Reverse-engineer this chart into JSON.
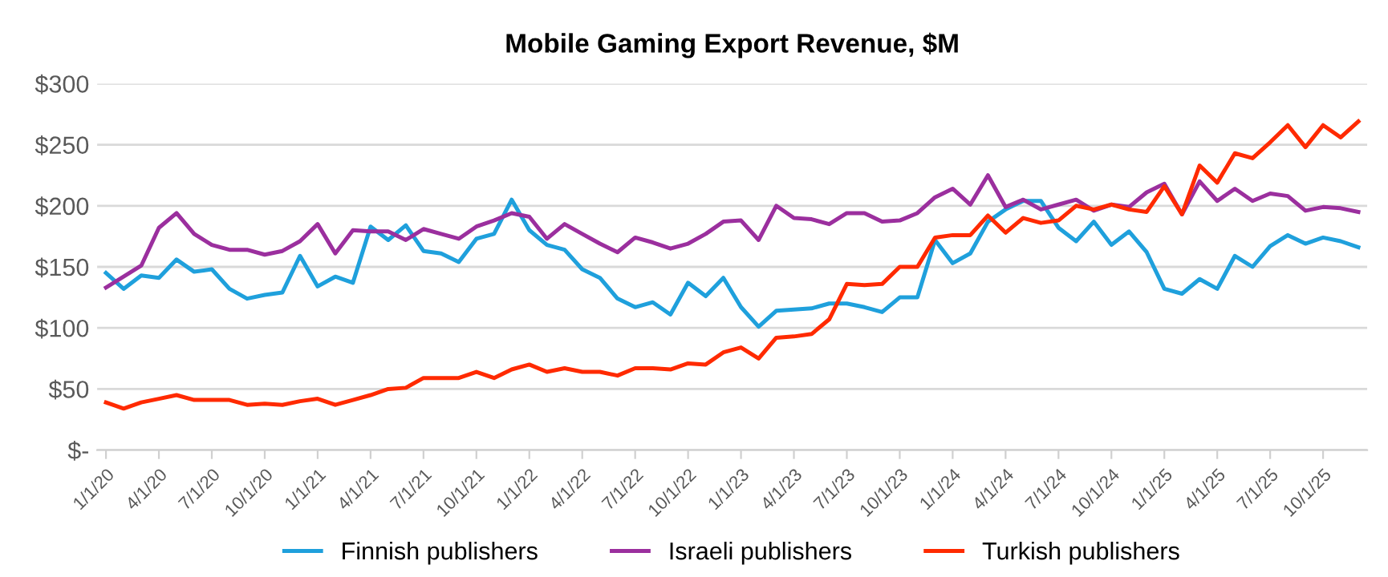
{
  "chart_data": {
    "type": "line",
    "title": "Mobile Gaming Export Revenue, $M",
    "categories": [
      "1/1/20",
      null,
      null,
      "4/1/20",
      null,
      null,
      "7/1/20",
      null,
      null,
      "10/1/20",
      null,
      null,
      "1/1/21",
      null,
      null,
      "4/1/21",
      null,
      null,
      "7/1/21",
      null,
      null,
      "10/1/21",
      null,
      null,
      "1/1/22",
      null,
      null,
      "4/1/22",
      null,
      null,
      "7/1/22",
      null,
      null,
      "10/1/22",
      null,
      null,
      "1/1/23",
      null,
      null,
      "4/1/23",
      null,
      null,
      "7/1/23",
      null,
      null,
      "10/1/23",
      null,
      null,
      "1/1/24",
      null,
      null,
      "4/1/24",
      null,
      null,
      "7/1/24",
      null,
      null,
      "10/1/24",
      null,
      null,
      "1/1/25",
      null,
      null,
      "4/1/25",
      null,
      null,
      "7/1/25",
      null,
      null,
      "10/1/25",
      null,
      null
    ],
    "series": [
      {
        "name": "Finnish publishers",
        "color": "#1fa0dc",
        "values": [
          145,
          132,
          143,
          141,
          156,
          146,
          148,
          132,
          124,
          127,
          129,
          159,
          134,
          142,
          137,
          183,
          172,
          184,
          163,
          161,
          154,
          173,
          177,
          205,
          180,
          168,
          164,
          148,
          141,
          124,
          117,
          121,
          111,
          137,
          126,
          141,
          117,
          101,
          114,
          115,
          116,
          120,
          120,
          117,
          113,
          125,
          125,
          172,
          153,
          161,
          187,
          197,
          204,
          204,
          182,
          171,
          187,
          168,
          179,
          162,
          132,
          128,
          140,
          132,
          159,
          150,
          167,
          176,
          169,
          174,
          171,
          166
        ]
      },
      {
        "name": "Israeli publishers",
        "color": "#9b2f9e",
        "values": [
          133,
          142,
          151,
          182,
          194,
          177,
          168,
          164,
          164,
          160,
          163,
          171,
          185,
          161,
          180,
          179,
          179,
          172,
          181,
          177,
          173,
          183,
          188,
          194,
          191,
          173,
          185,
          177,
          169,
          162,
          174,
          170,
          165,
          169,
          177,
          187,
          188,
          172,
          200,
          190,
          189,
          185,
          194,
          194,
          187,
          188,
          194,
          207,
          214,
          201,
          225,
          199,
          205,
          197,
          201,
          205,
          196,
          201,
          199,
          211,
          218,
          193,
          220,
          204,
          214,
          204,
          210,
          208,
          196,
          199,
          198,
          195
        ]
      },
      {
        "name": "Turkish publishers",
        "color": "#ff2a00",
        "values": [
          39,
          34,
          39,
          42,
          45,
          41,
          41,
          41,
          37,
          38,
          37,
          40,
          42,
          37,
          41,
          45,
          50,
          51,
          59,
          59,
          59,
          64,
          59,
          66,
          70,
          64,
          67,
          64,
          64,
          61,
          67,
          67,
          66,
          71,
          70,
          80,
          84,
          75,
          92,
          93,
          95,
          107,
          136,
          135,
          136,
          150,
          150,
          174,
          176,
          176,
          192,
          178,
          190,
          186,
          188,
          200,
          197,
          201,
          197,
          195,
          216,
          193,
          233,
          219,
          243,
          239,
          252,
          266,
          248,
          266,
          256,
          269
        ]
      }
    ],
    "ylim": [
      0,
      300
    ],
    "yticks": [
      {
        "value": 0,
        "label": "$-"
      },
      {
        "value": 50,
        "label": "$50"
      },
      {
        "value": 100,
        "label": "$100"
      },
      {
        "value": 150,
        "label": "$150"
      },
      {
        "value": 200,
        "label": "$200"
      },
      {
        "value": 250,
        "label": "$250"
      },
      {
        "value": 300,
        "label": "$300"
      }
    ],
    "grid": "y",
    "legend": "bottom",
    "marker": "none",
    "line_style": "solid"
  }
}
